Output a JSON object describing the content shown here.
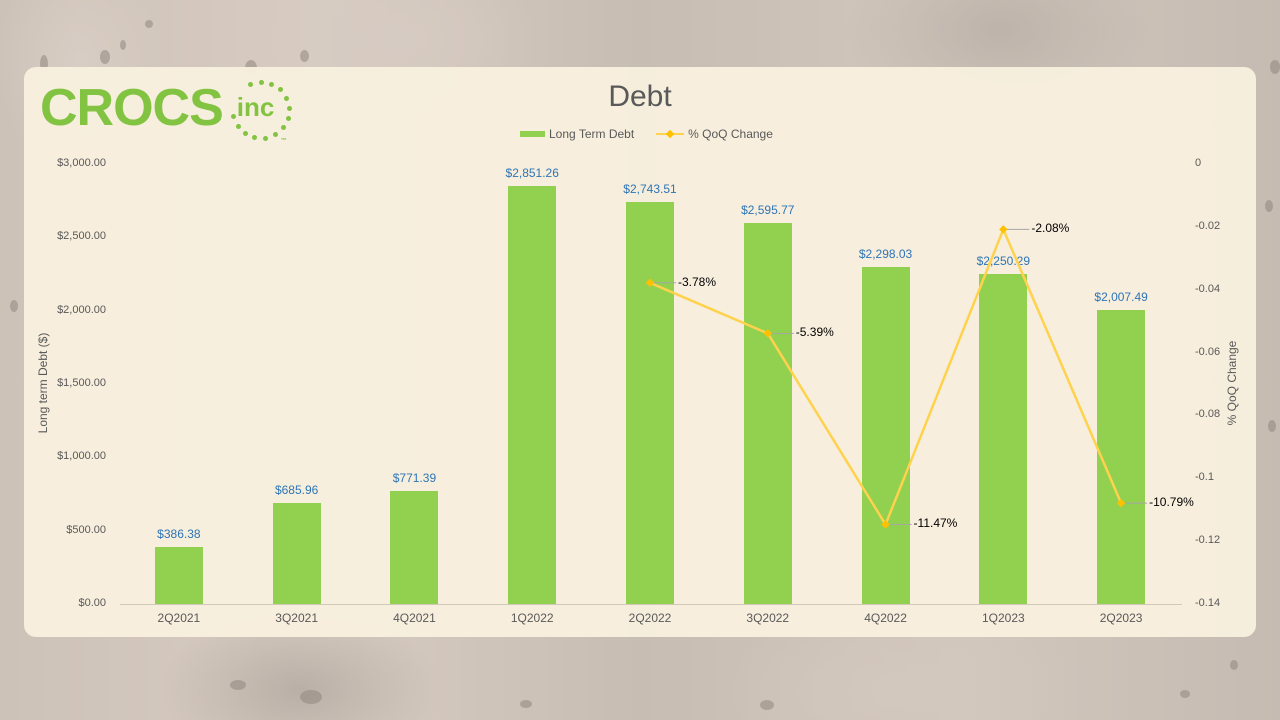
{
  "logo": {
    "brand": "CROCS",
    "suffix": "inc",
    "tm": "™"
  },
  "chart_data": {
    "type": "bar+line",
    "title": "Debt",
    "legend": [
      "Long Term Debt",
      "% QoQ Change"
    ],
    "legend_position": "top",
    "categories": [
      "2Q2021",
      "3Q2021",
      "4Q2021",
      "1Q2022",
      "2Q2022",
      "3Q2022",
      "4Q2022",
      "1Q2023",
      "2Q2023"
    ],
    "series": [
      {
        "name": "Long Term Debt",
        "type": "bar",
        "axis": "left",
        "color": "#92d050",
        "values": [
          386.38,
          685.96,
          771.39,
          2851.26,
          2743.51,
          2595.77,
          2298.03,
          2250.29,
          2007.49
        ],
        "labels": [
          "$386.38",
          "$685.96",
          "$771.39",
          "$2,851.26",
          "$2,743.51",
          "$2,595.77",
          "$2,298.03",
          "$2,250.29",
          "$2,007.49"
        ]
      },
      {
        "name": "% QoQ Change",
        "type": "line",
        "axis": "right",
        "color": "#ffc000",
        "values": [
          null,
          null,
          null,
          null,
          -0.0378,
          -0.0539,
          -0.1147,
          -0.0208,
          -0.1079
        ],
        "labels": [
          "",
          "",
          "",
          "",
          "-3.78%",
          "-5.39%",
          "-11.47%",
          "-2.08%",
          "-10.79%"
        ]
      }
    ],
    "ylabel": "Long term Debt ($)",
    "ylabel_right": "% QoQ Change",
    "ylim": [
      0,
      3000
    ],
    "ylim_right": [
      -0.14,
      0
    ],
    "yticks": [
      "$0.00",
      "$500.00",
      "$1,000.00",
      "$1,500.00",
      "$2,000.00",
      "$2,500.00",
      "$3,000.00"
    ],
    "yticks_right": [
      "0",
      "-0.02",
      "-0.04",
      "-0.06",
      "-0.08",
      "-0.1",
      "-0.12",
      "-0.14"
    ],
    "grid": false
  }
}
